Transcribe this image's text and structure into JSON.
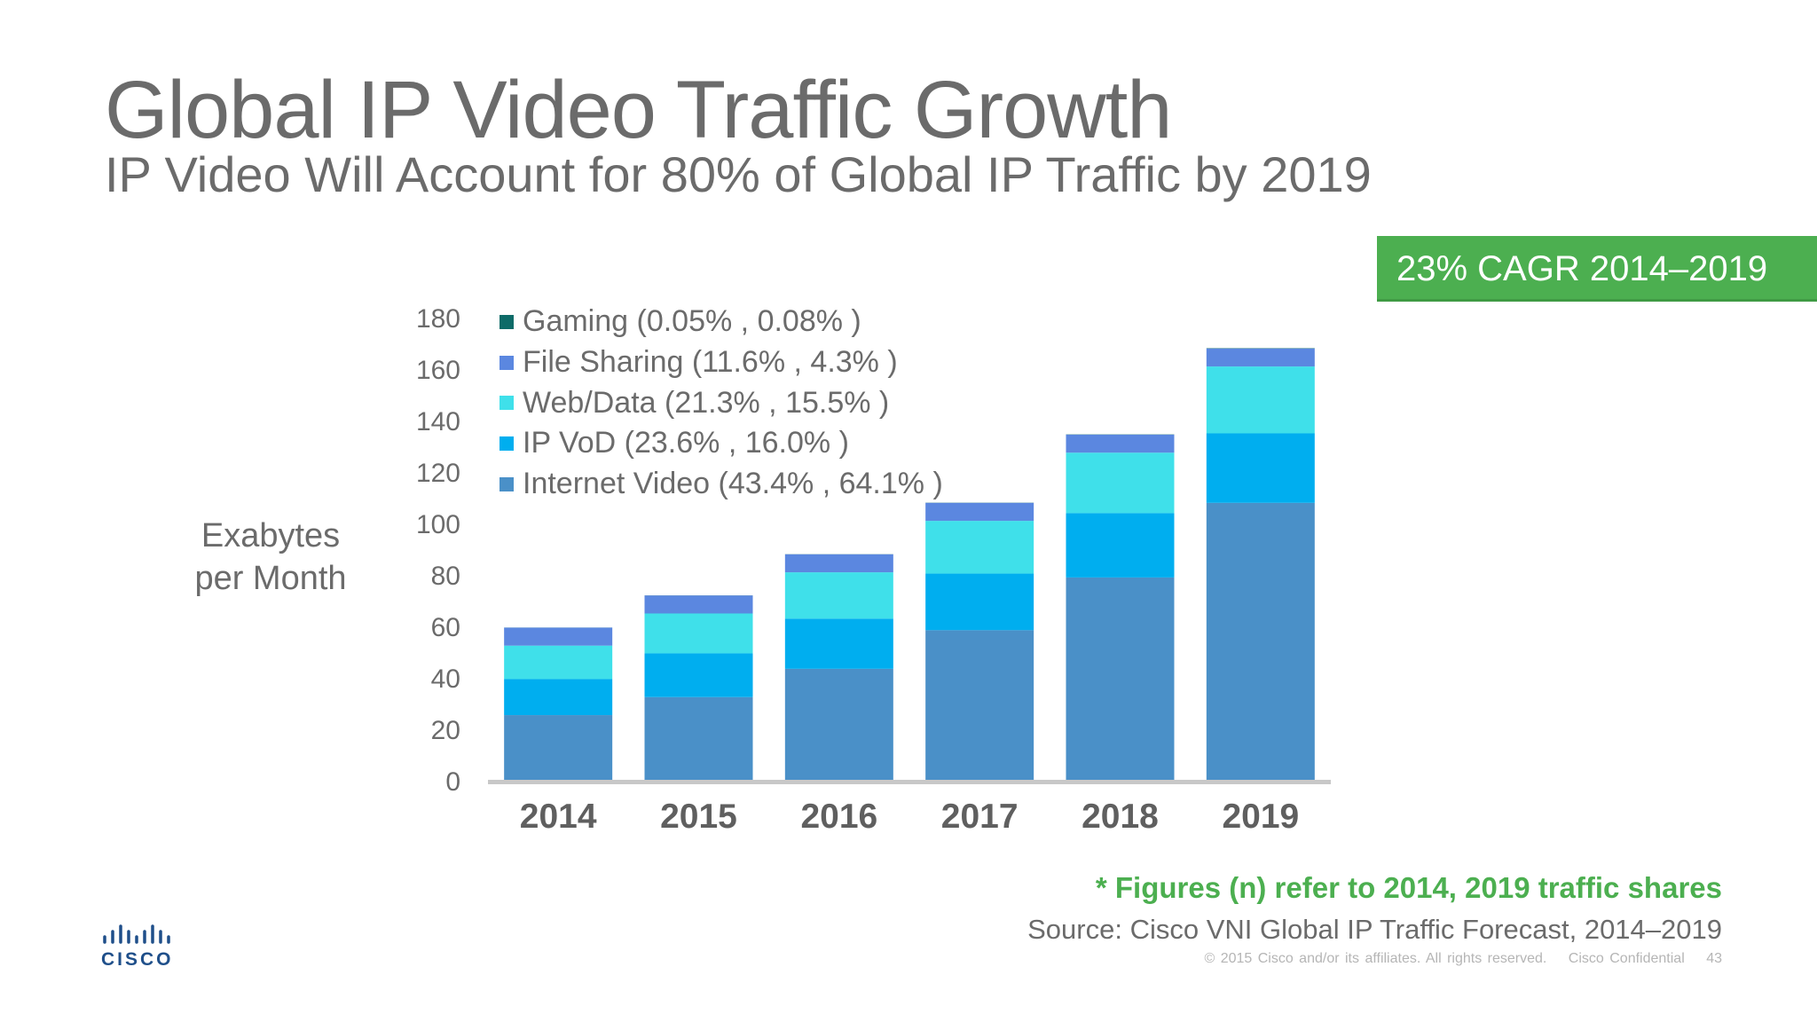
{
  "slide": {
    "title": "Global IP Video Traffic Growth",
    "subtitle": "IP Video Will Account for 80% of Global IP Traffic by 2019",
    "cagr_badge": "23% CAGR 2014–2019",
    "footnote": "* Figures (n) refer to 2014, 2019 traffic shares",
    "source": "Source: Cisco VNI Global IP Traffic Forecast, 2014–2019",
    "copyright": "© 2015  Cisco and/or its affiliates. All rights reserved.",
    "confidential": "Cisco Confidential",
    "page_number": "43",
    "logo_text": "CISCO",
    "colors": {
      "title_gray": "#6b6b6b",
      "accent_green": "#4caf50",
      "cisco_blue": "#1f4f8a"
    }
  },
  "chart_data": {
    "type": "bar",
    "stacked": true,
    "ylabel": [
      "Exabytes",
      "per Month"
    ],
    "ylim": [
      0,
      180
    ],
    "yticks": [
      0,
      20,
      40,
      60,
      80,
      100,
      120,
      140,
      160,
      180
    ],
    "categories": [
      "2014",
      "2015",
      "2016",
      "2017",
      "2018",
      "2019"
    ],
    "grid": false,
    "legend_position": "top-left",
    "series": [
      {
        "name": "Internet Video (43.4% , 64.1% )",
        "color": "#4a90c8",
        "values": [
          25.5,
          32.5,
          43.5,
          58.5,
          79,
          108
        ]
      },
      {
        "name": "IP VoD (23.6% , 16.0% )",
        "color": "#00aeef",
        "values": [
          14,
          17,
          19.5,
          22,
          25,
          27
        ]
      },
      {
        "name": "Web/Data (21.3% , 15.5% )",
        "color": "#3fe0ea",
        "values": [
          13,
          15.5,
          18,
          20.5,
          23.5,
          26
        ]
      },
      {
        "name": "File Sharing (11.6% , 4.3% )",
        "color": "#5b87e0",
        "values": [
          7,
          7,
          7,
          7,
          7,
          7
        ]
      },
      {
        "name": "Gaming (0.05% , 0.08% )",
        "color": "#0e6b68",
        "values": [
          0.03,
          0.04,
          0.05,
          0.07,
          0.1,
          0.14
        ]
      }
    ],
    "legend_order": [
      4,
      3,
      2,
      1,
      0
    ]
  }
}
